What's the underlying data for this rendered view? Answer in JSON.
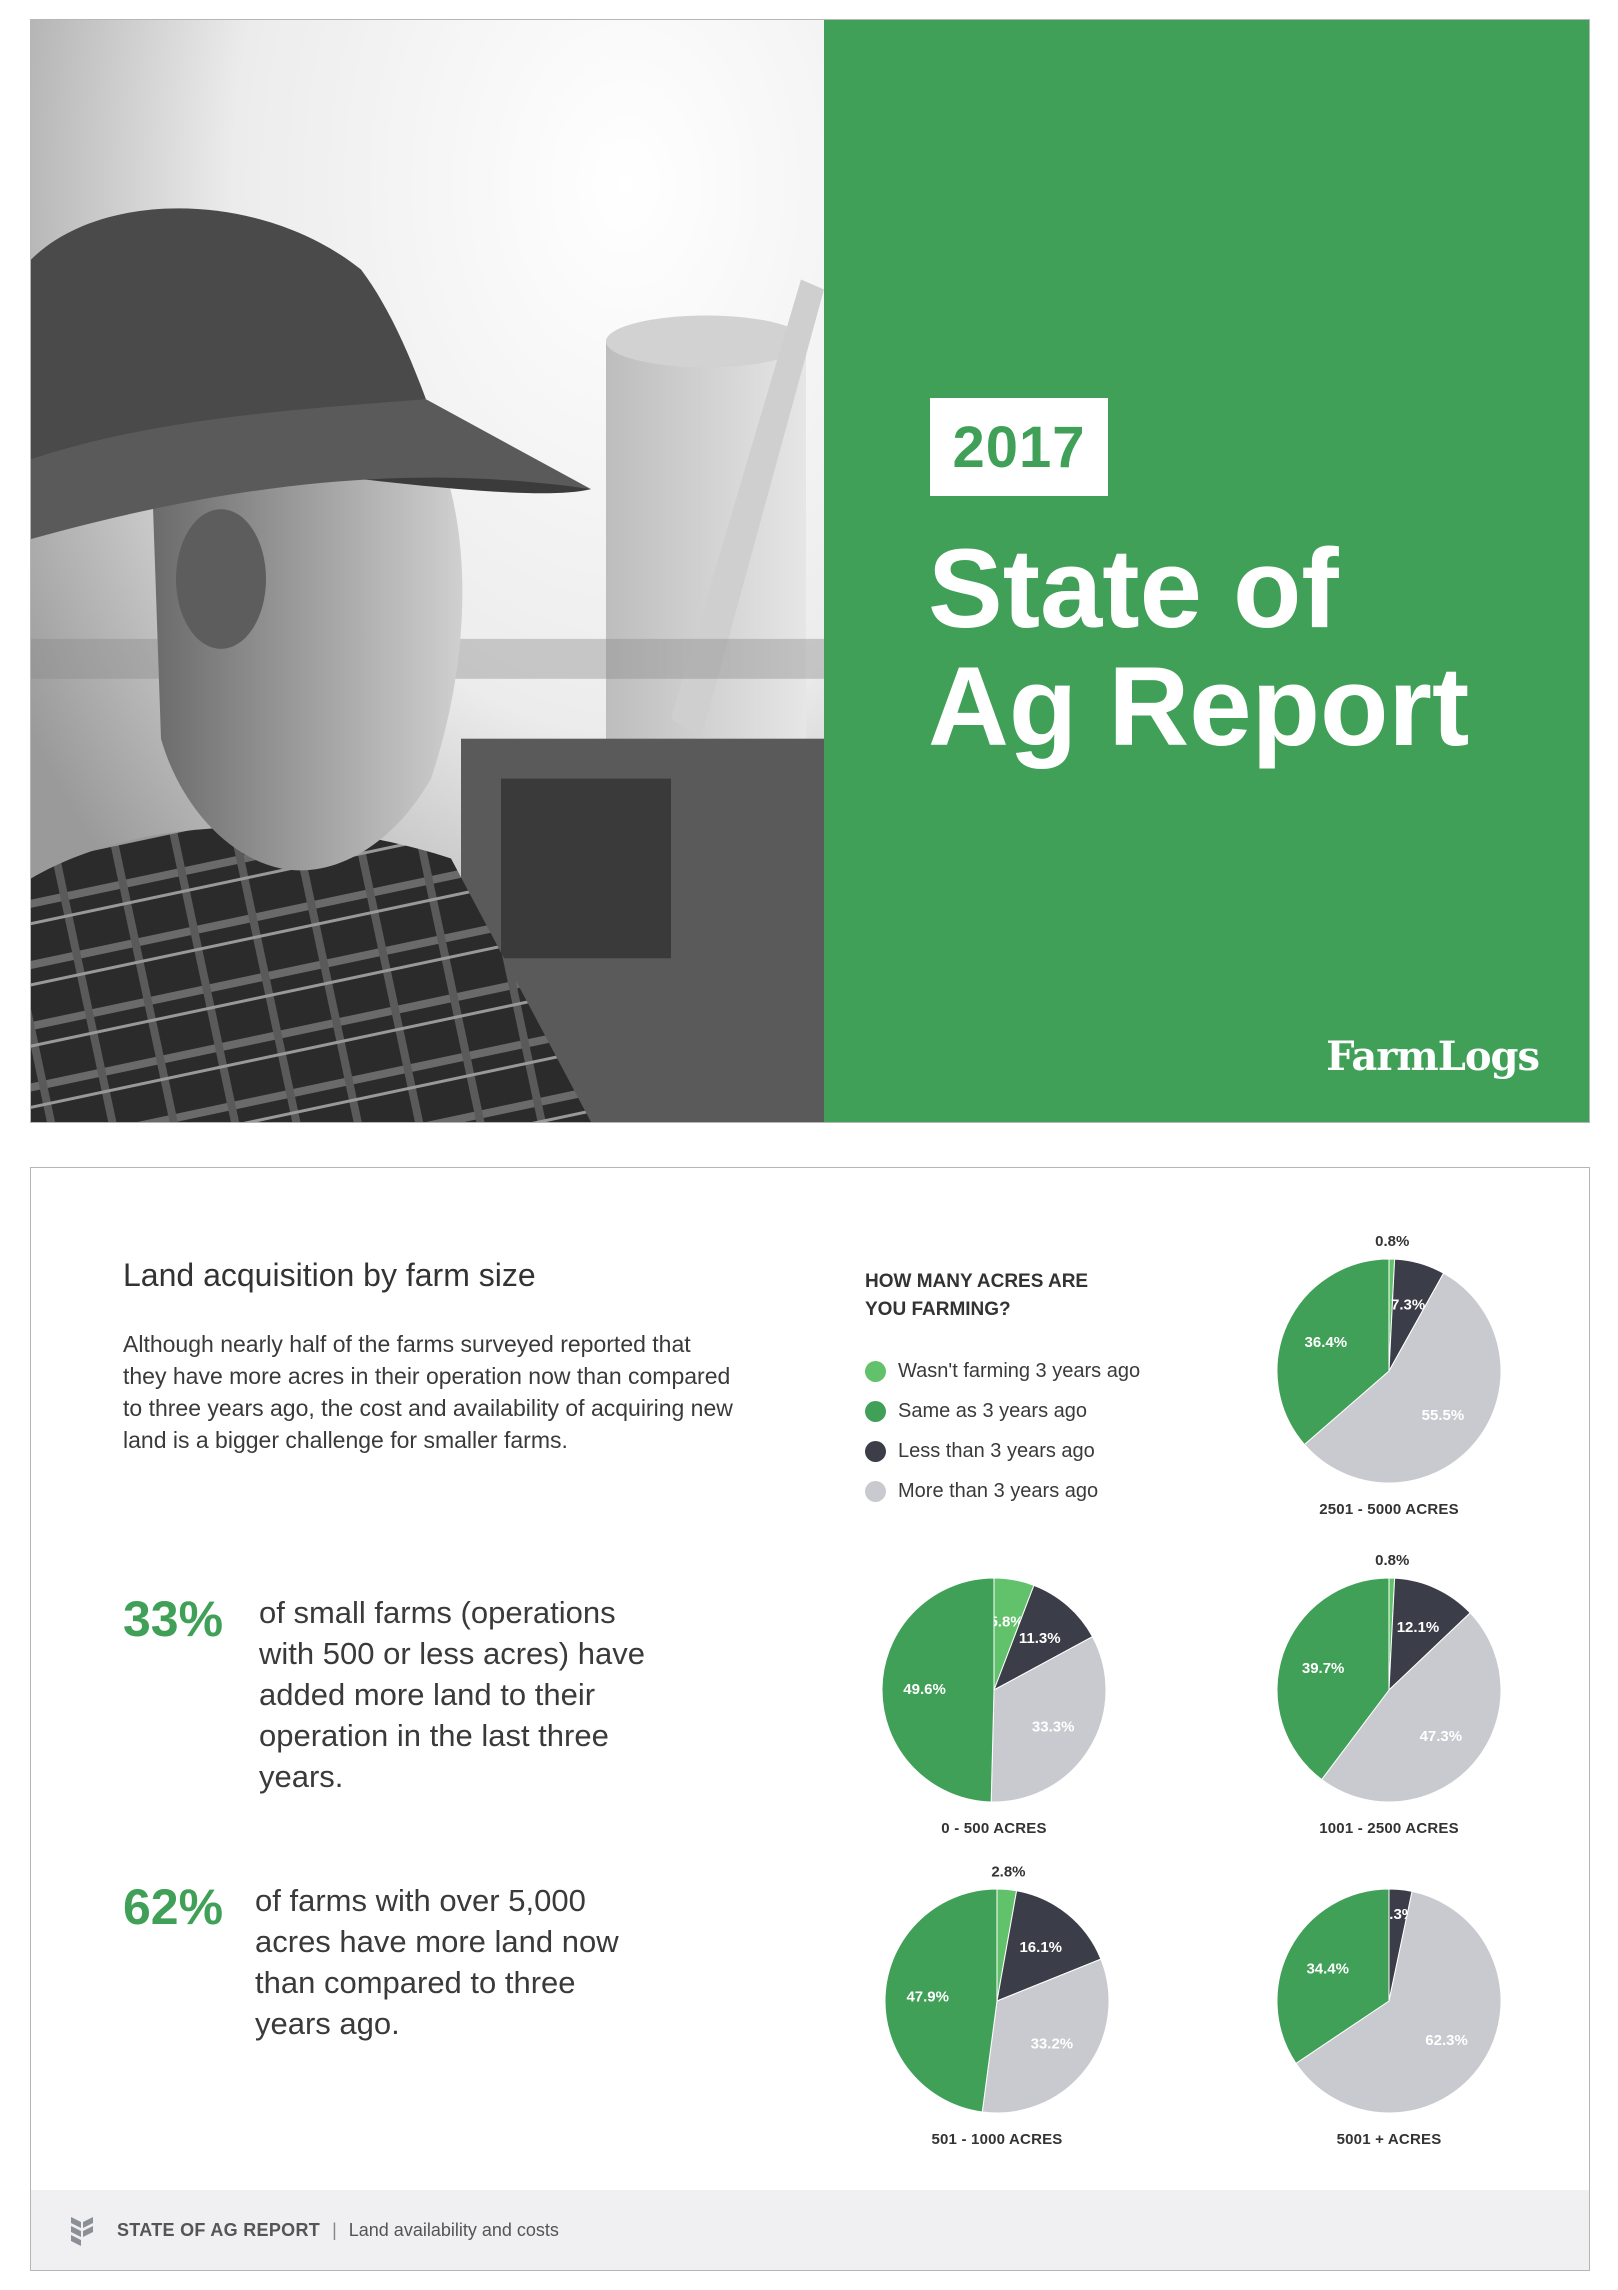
{
  "cover": {
    "year": "2017",
    "title_line1": "State of",
    "title_line2": "Ag Report",
    "brand": "FarmLogs",
    "photo_description_icon": "farmer-photo-icon"
  },
  "page": {
    "section_title": "Land acquisition by farm size",
    "intro": "Although nearly half of the farms surveyed reported that they have more acres in their operation now than compared to three years ago, the cost and availability of acquiring new land is a bigger challenge for smaller farms.",
    "stats": [
      {
        "value": "33%",
        "text": "of small farms (operations with 500 or less acres) have added more land to their operation in the last three years."
      },
      {
        "value": "62%",
        "text": "of farms with over 5,000 acres have more land now than compared to three years ago."
      }
    ],
    "footer": {
      "title": "STATE OF AG REPORT",
      "separator": "|",
      "subtitle": "Land availability and costs"
    }
  },
  "chart_data": {
    "type": "pie",
    "question": "HOW MANY ACRES ARE YOU FARMING?",
    "legend": [
      {
        "name": "Wasn't farming 3 years ago",
        "color": "#62c26c"
      },
      {
        "name": "Same as 3 years ago",
        "color": "#40a058"
      },
      {
        "name": "Less than 3 years ago",
        "color": "#3b3e48"
      },
      {
        "name": "More than 3 years ago",
        "color": "#c9cacf"
      }
    ],
    "charts": [
      {
        "label": "2501 - 5000 ACRES",
        "values": [
          0.8,
          7.3,
          55.5,
          36.4
        ]
      },
      {
        "label": "0 - 500 ACRES",
        "values": [
          5.8,
          11.3,
          33.3,
          49.6
        ]
      },
      {
        "label": "1001 - 2500 ACRES",
        "values": [
          0.8,
          12.1,
          47.3,
          39.7
        ]
      },
      {
        "label": "501 - 1000 ACRES",
        "values": [
          2.8,
          16.1,
          33.2,
          47.9
        ]
      },
      {
        "label": "5001 + ACRES",
        "values": [
          null,
          3.3,
          62.3,
          34.4
        ]
      }
    ],
    "slice_order": [
      "Wasn't farming 3 years ago",
      "Less than 3 years ago",
      "More than 3 years ago",
      "Same as 3 years ago"
    ]
  }
}
